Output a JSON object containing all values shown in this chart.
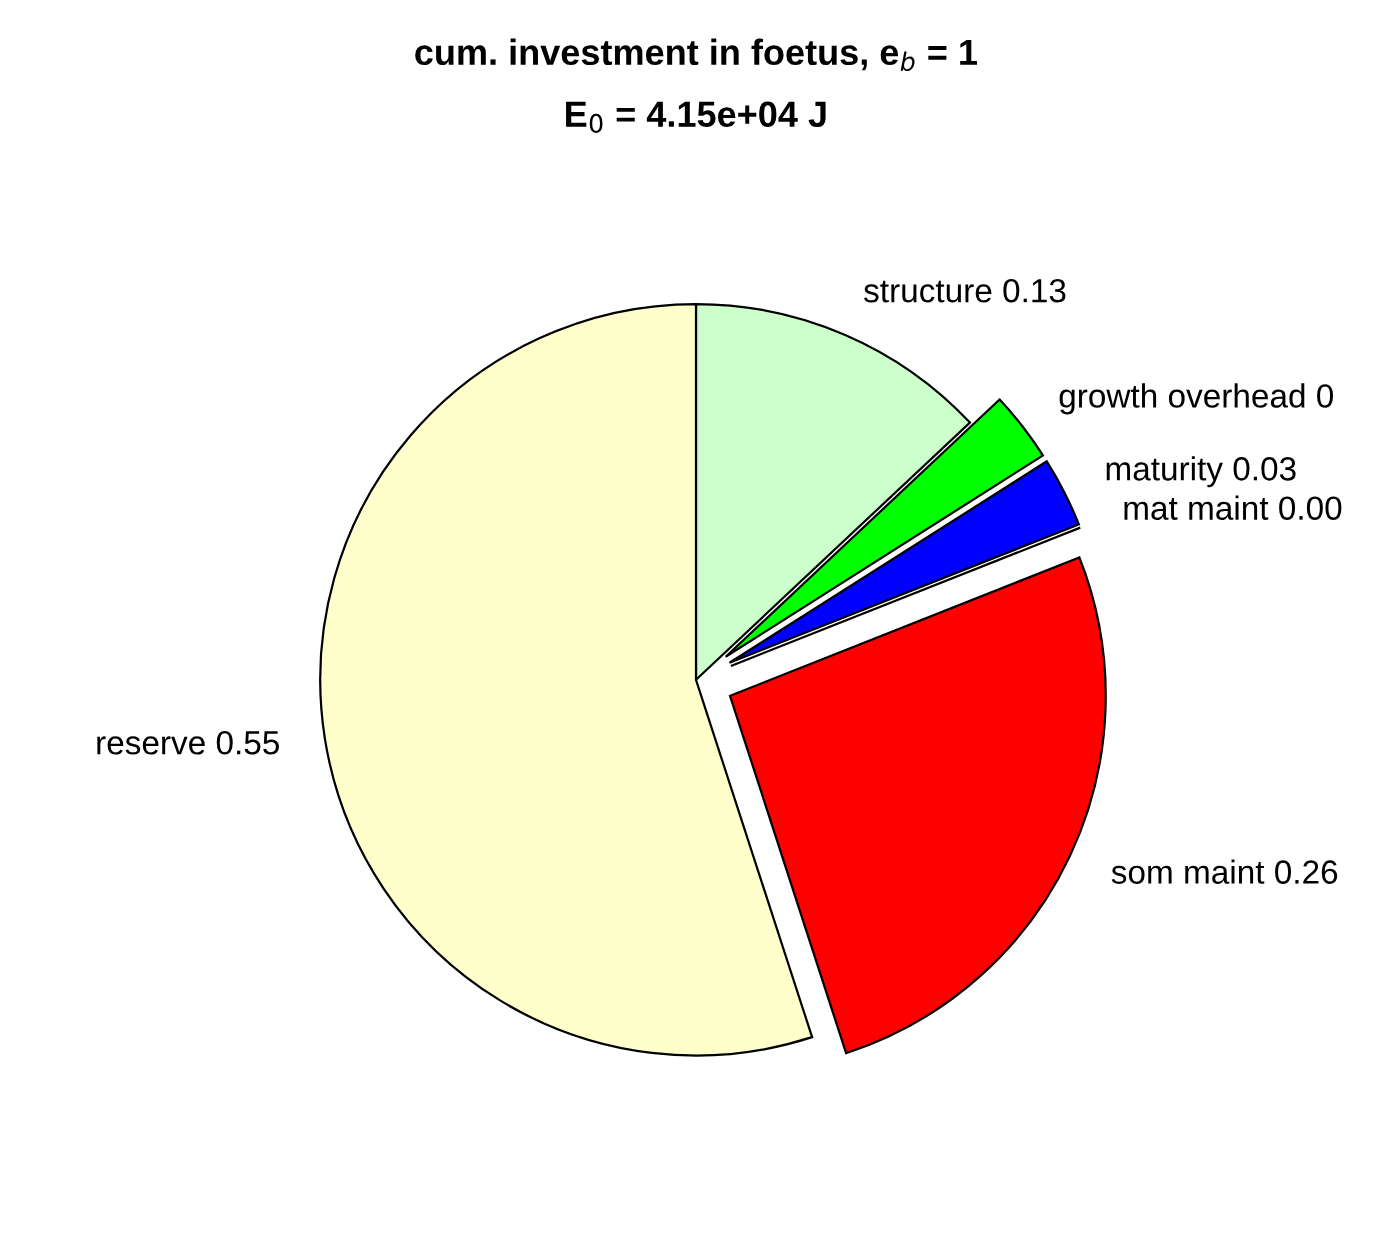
{
  "chart_data": {
    "type": "pie",
    "title": "cum. investment in foetus, e$_{b}$ = 1",
    "subtitle": "E$_{0}$ = 4.15e+04 J",
    "categories": [
      "structure 0.13",
      "growth overhead 0",
      "maturity 0.03",
      "mat maint 0.00",
      "som maint 0.26",
      "reserve 0.55"
    ],
    "values": [
      0.13,
      0.03,
      0.03,
      0.0,
      0.26,
      0.55
    ],
    "colors": [
      "#ccffcc",
      "#00ff00",
      "#0000ff",
      "#00ffff",
      "#ff0000",
      "#ffffcc"
    ]
  }
}
